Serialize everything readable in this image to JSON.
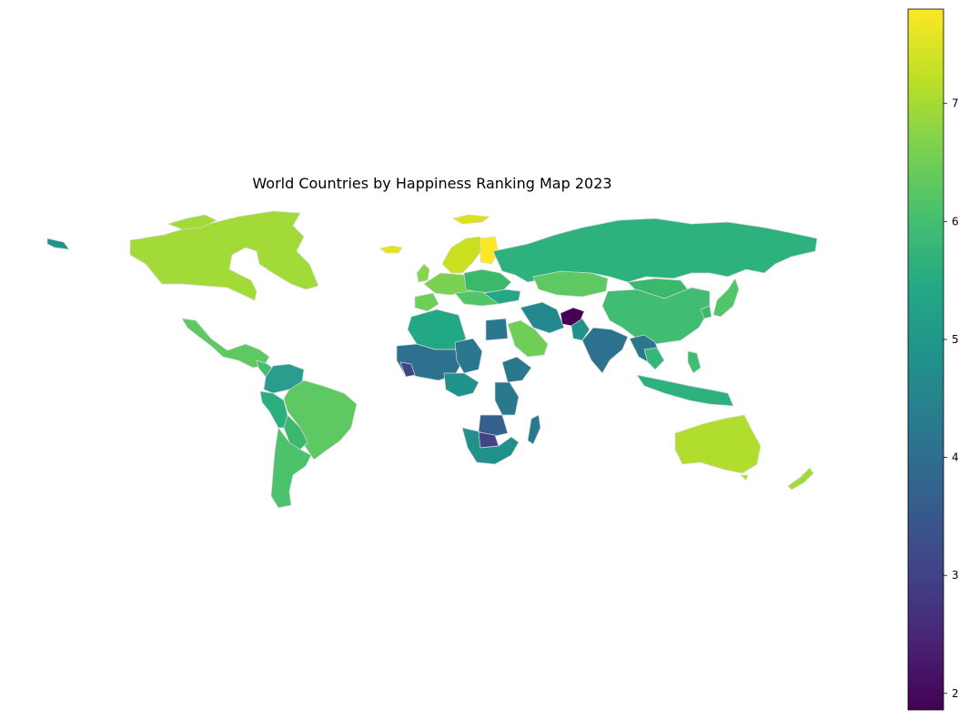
{
  "chart_data": {
    "type": "choropleth",
    "title": "World Countries by Happiness Ranking Map 2023",
    "colormap": "viridis",
    "colorbar": {
      "min": 1.86,
      "max": 7.8,
      "ticks": [
        {
          "value": 2,
          "label": "2"
        },
        {
          "value": 3,
          "label": "3"
        },
        {
          "value": 4,
          "label": "4"
        },
        {
          "value": 5,
          "label": "5"
        },
        {
          "value": 6,
          "label": "6"
        },
        {
          "value": 7,
          "label": "7"
        }
      ],
      "placement": "right"
    },
    "border_color": "#d9d9d9"
  }
}
